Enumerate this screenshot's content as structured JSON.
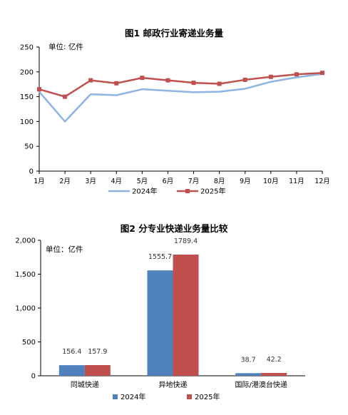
{
  "chart_data": [
    {
      "type": "line",
      "title": "图1   邮政行业寄递业务量",
      "unit": "单位: 亿件",
      "categories": [
        "1月",
        "2月",
        "3月",
        "4月",
        "5月",
        "6月",
        "7月",
        "8月",
        "9月",
        "10月",
        "11月",
        "12月"
      ],
      "ylim": [
        0,
        250
      ],
      "yticks": [
        0,
        50,
        100,
        150,
        200,
        250
      ],
      "grid": false,
      "legend": "bottom",
      "series": [
        {
          "name": "2024年",
          "color": "#8db4e2",
          "marker": "none",
          "values": [
            160,
            100,
            155,
            153,
            165,
            162,
            159,
            160,
            166,
            180,
            189,
            196
          ]
        },
        {
          "name": "2025年",
          "color": "#c0504d",
          "marker": "square",
          "values": [
            165,
            150,
            183,
            177,
            188,
            183,
            178,
            176,
            184,
            190,
            195,
            198
          ]
        }
      ]
    },
    {
      "type": "bar",
      "title": "图2   分专业快递业务量比较",
      "unit": "单位：亿件",
      "categories": [
        "同城快递",
        "异地快递",
        "国际/港澳台快递"
      ],
      "ylim": [
        0,
        2000
      ],
      "yticks": [
        0,
        500,
        1000,
        1500,
        2000
      ],
      "ytick_labels": [
        "0",
        "500",
        "1,000",
        "1,500",
        "2,000"
      ],
      "grid": false,
      "legend": "bottom",
      "series": [
        {
          "name": "2024年",
          "color": "#4f81bd",
          "values": [
            156.4,
            1555.7,
            38.7
          ]
        },
        {
          "name": "2025年",
          "color": "#c0504d",
          "values": [
            157.9,
            1789.4,
            42.2
          ]
        }
      ]
    }
  ]
}
